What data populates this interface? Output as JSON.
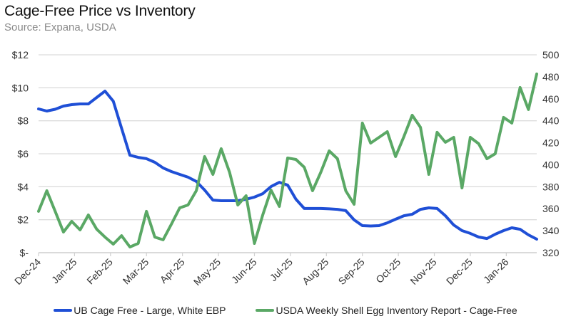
{
  "chart_data": {
    "type": "line",
    "title": "Cage-Free Price vs Inventory",
    "subtitle": "Source: Expana, USDA",
    "xlabel": "",
    "ylabel_left": "",
    "ylabel_right": "",
    "x_tick_labels": [
      "Dec-24",
      "Jan-25",
      "Feb-25",
      "Mar-25",
      "Apr-25",
      "May-25",
      "Jun-25",
      "Jul-25",
      "Aug-25",
      "Sep-25",
      "Oct-25",
      "Nov-25",
      "Dec-25",
      "Jan-26"
    ],
    "x_frequency": "weekly",
    "y_left": {
      "ticks": [
        "$12",
        "$10",
        "$8",
        "$6",
        "$4",
        "$2",
        "$-"
      ],
      "range": [
        0,
        12
      ],
      "step": 2
    },
    "y_right": {
      "ticks": [
        "500",
        "480",
        "460",
        "440",
        "420",
        "400",
        "380",
        "360",
        "340",
        "320"
      ],
      "range": [
        320,
        500
      ],
      "step": 20
    },
    "grid": true,
    "legend_position": "bottom",
    "series": [
      {
        "name": "UB Cage Free - Large, White EBP",
        "axis": "left",
        "color": "#1f4fd6",
        "values": [
          8.72,
          8.59,
          8.7,
          8.89,
          8.98,
          9.02,
          9.02,
          9.41,
          9.8,
          9.19,
          7.55,
          5.91,
          5.78,
          5.7,
          5.48,
          5.14,
          4.92,
          4.75,
          4.58,
          4.32,
          3.8,
          3.19,
          3.15,
          3.15,
          3.15,
          3.24,
          3.37,
          3.58,
          4.01,
          4.27,
          4.1,
          3.24,
          2.68,
          2.68,
          2.68,
          2.66,
          2.63,
          2.55,
          1.99,
          1.64,
          1.62,
          1.64,
          1.81,
          2.03,
          2.24,
          2.33,
          2.63,
          2.72,
          2.68,
          2.24,
          1.68,
          1.34,
          1.17,
          0.95,
          0.86,
          1.12,
          1.34,
          1.51,
          1.42,
          1.08,
          0.82
        ]
      },
      {
        "name": "USDA Weekly Shell Egg Inventory Report - Cage-Free",
        "axis": "right",
        "color": "#5aa865",
        "values": [
          357.6,
          376.3,
          357.6,
          338.8,
          348.5,
          340.7,
          354.3,
          341.4,
          334.2,
          327.8,
          335.5,
          325.2,
          328.4,
          357.6,
          334.2,
          331.7,
          345.9,
          360.8,
          363.4,
          376.3,
          407.4,
          391.2,
          414.6,
          393.2,
          363.4,
          371.8,
          328.4,
          354.3,
          377.0,
          362.1,
          406.1,
          404.8,
          397.7,
          376.3,
          393.2,
          412.6,
          405.5,
          376.3,
          364.0,
          437.9,
          419.7,
          424.9,
          430.1,
          407.4,
          425.6,
          445.0,
          434.0,
          391.2,
          429.5,
          420.4,
          424.9,
          378.9,
          424.9,
          419.1,
          405.5,
          410.0,
          443.1,
          437.9,
          470.3,
          450.2,
          482.6
        ]
      }
    ]
  }
}
